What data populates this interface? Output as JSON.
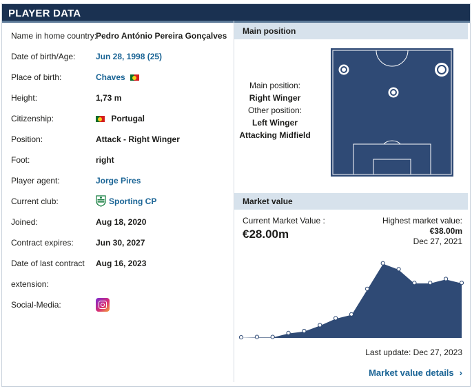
{
  "header": {
    "title": "PLAYER DATA"
  },
  "player_rows": [
    {
      "label": "Name in home country:",
      "value": "Pedro António Pereira Gonçalves"
    },
    {
      "label": "Date of birth/Age:",
      "value": "Jun 28, 1998 (25)"
    },
    {
      "label": "Place of birth:",
      "value": "Chaves"
    },
    {
      "label": "Height:",
      "value": "1,73 m"
    },
    {
      "label": "Citizenship:",
      "value": "Portugal"
    },
    {
      "label": "Position:",
      "value": "Attack - Right Winger"
    },
    {
      "label": "Foot:",
      "value": "right"
    },
    {
      "label": "Player agent:",
      "value": "Jorge Pires"
    },
    {
      "label": "Current club:",
      "value": "Sporting CP"
    },
    {
      "label": "Joined:",
      "value": "Aug 18, 2020"
    },
    {
      "label": "Contract expires:",
      "value": "Jun 30, 2027"
    },
    {
      "label": "Date of last contract",
      "value": "Aug 16, 2023"
    },
    {
      "label": "extension:",
      "value": ""
    },
    {
      "label": "Social-Media:",
      "value": ""
    }
  ],
  "main_position": {
    "title": "Main position",
    "main_label": "Main position:",
    "main_value": "Right Winger",
    "other_label": "Other position:",
    "other_values": [
      "Left Winger",
      "Attacking Midfield"
    ]
  },
  "market_value": {
    "title": "Market value",
    "current_label": "Current Market Value :",
    "current_value": "€28.00m",
    "highest_label": "Highest market value:",
    "highest_value": "€38.00m",
    "highest_date": "Dec 27, 2021",
    "last_update": "Last update: Dec 27, 2023",
    "details_link": "Market value details"
  },
  "colors": {
    "header_bg": "#1a3151",
    "pitch": "#2f4a75",
    "chart_fill": "#2f4a75",
    "link": "#1a6495",
    "flag_green": "#0b6e2c",
    "flag_red": "#d41f1f"
  },
  "icons": {
    "flag": "portugal-flag-icon",
    "club": "sporting-cp-badge-icon",
    "social": "instagram-icon",
    "chevron": "chevron-right-icon"
  },
  "chart_data": {
    "type": "area",
    "title": "",
    "xlabel": "",
    "ylabel": "",
    "x": [
      1,
      2,
      3,
      4,
      5,
      6,
      7,
      8,
      9,
      10,
      11,
      12,
      13,
      14,
      15
    ],
    "values": [
      0.3,
      0.5,
      0.5,
      2.5,
      3.5,
      6.5,
      10.0,
      12.0,
      25.0,
      38.0,
      35.0,
      28.0,
      28.0,
      30.0,
      28.0
    ],
    "ylim": [
      0,
      40
    ],
    "grid": false
  }
}
